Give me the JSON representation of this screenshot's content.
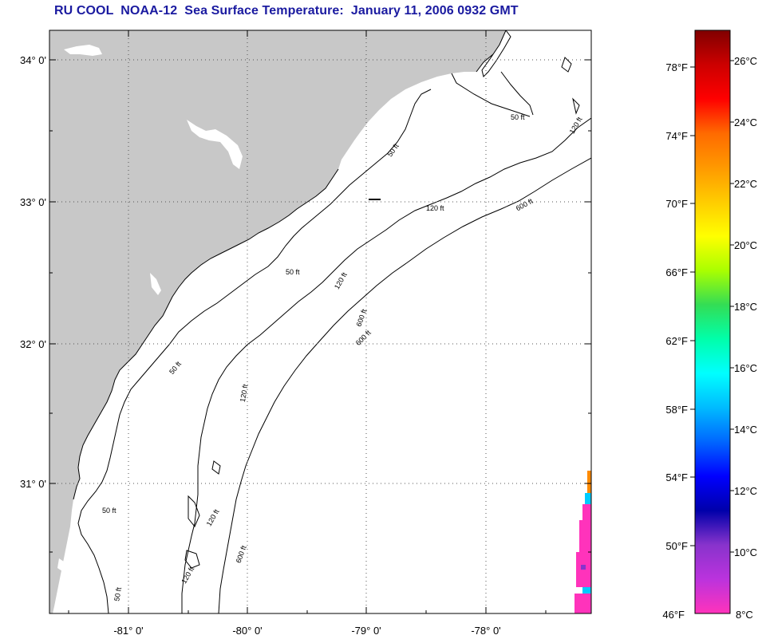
{
  "title": "RU COOL  NOAA-12  Sea Surface Temperature:  January 11, 2006 0932 GMT",
  "map": {
    "lat_labels": [
      "34° 0'",
      "33° 0'",
      "32° 0'",
      "31° 0'"
    ],
    "lon_labels": [
      "-81° 0'",
      "-80° 0'",
      "-79° 0'",
      "-78° 0'"
    ],
    "contour_labels": [
      "50 ft",
      "120 ft",
      "600 ft",
      "50 ft",
      "120 ft",
      "600 ft",
      "50 ft",
      "120 ft",
      "600 ft",
      "50 ft",
      "120 ft",
      "50 ft",
      "120 ft",
      "600 ft",
      "50 ft",
      "120 ft"
    ],
    "colors": {
      "land": "#c8c8c8",
      "ocean": "#ffffff",
      "contour": "#000000",
      "grid": "#555555"
    }
  },
  "colorbar": {
    "fahrenheit_labels": [
      "78°F",
      "74°F",
      "70°F",
      "66°F",
      "62°F",
      "58°F",
      "54°F",
      "50°F",
      "46°F"
    ],
    "celsius_labels": [
      "26°C",
      "24°C",
      "22°C",
      "20°C",
      "18°C",
      "16°C",
      "14°C",
      "12°C",
      "10°C",
      "8°C"
    ],
    "gradient_colors": [
      "#800000",
      "#cc0000",
      "#ff0000",
      "#ff6a00",
      "#ff9900",
      "#ffcc00",
      "#ffff00",
      "#aaff00",
      "#33dd55",
      "#00ffaa",
      "#00ffff",
      "#00bbff",
      "#0066ff",
      "#0000ff",
      "#0000aa",
      "#8833cc",
      "#bb33dd",
      "#ff33bb"
    ]
  }
}
